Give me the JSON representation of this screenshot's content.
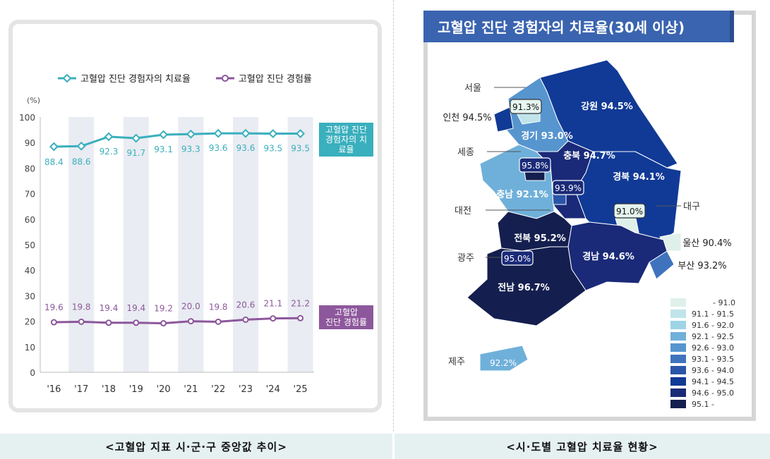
{
  "chart_data": {
    "type": "line",
    "categories": [
      "'16",
      "'17",
      "'18",
      "'19",
      "'20",
      "'21",
      "'22",
      "'23",
      "'24",
      "'25"
    ],
    "ylabel": "(%)",
    "ylim": [
      0,
      100
    ],
    "yticks": [
      0,
      10,
      20,
      30,
      40,
      50,
      60,
      70,
      80,
      90,
      100
    ],
    "legend_position": "top",
    "series": [
      {
        "name": "고혈압 진단 경험자의 치료율",
        "tag": "고혈압 진단 경험자의 치료율",
        "tag_lines": [
          "고혈압 진단",
          "경험자의 치료율"
        ],
        "color": "#3aafbd",
        "values": [
          88.4,
          88.6,
          92.3,
          91.7,
          93.1,
          93.3,
          93.6,
          93.6,
          93.5,
          93.5
        ],
        "labels": [
          "88.4",
          "88.6",
          "92.3",
          "91.7",
          "93.1",
          "93.3",
          "93.6",
          "93.6",
          "93.5",
          "93.5"
        ]
      },
      {
        "name": "고혈압 진단 경험률",
        "tag_lines": [
          "고혈압",
          "진단 경험률"
        ],
        "color": "#8d579c",
        "values": [
          19.6,
          19.8,
          19.4,
          19.4,
          19.2,
          20.0,
          19.8,
          20.6,
          21.1,
          21.2
        ],
        "labels": [
          "19.6",
          "19.8",
          "19.4",
          "19.4",
          "19.2",
          "20.0",
          "19.8",
          "20.6",
          "21.1",
          "21.2"
        ]
      }
    ]
  },
  "left_caption": "<고혈압 지표 시·군·구 중앙값 추이>",
  "right_caption": "<시·도별 고혈압 치료율 현황>",
  "map": {
    "title": "고혈압 진단 경험자의 치료율(30세 이상)",
    "legend": [
      {
        "label": "- 91.0",
        "color": "#dff0ea"
      },
      {
        "label": "91.1 - 91.5",
        "color": "#c0e4ea"
      },
      {
        "label": "91.6 - 92.0",
        "color": "#9dd5e6"
      },
      {
        "label": "92.1 - 92.5",
        "color": "#6fb0da"
      },
      {
        "label": "92.6 - 93.0",
        "color": "#5795cf"
      },
      {
        "label": "93.1 - 93.5",
        "color": "#3f73be"
      },
      {
        "label": "93.6 - 94.0",
        "color": "#2a55a8"
      },
      {
        "label": "94.1 - 94.5",
        "color": "#113a96"
      },
      {
        "label": "94.6 - 95.0",
        "color": "#1a2a78"
      },
      {
        "label": "95.1 -",
        "color": "#141f4f"
      }
    ],
    "regions": [
      {
        "name": "강원",
        "value": "94.5%"
      },
      {
        "name": "경기",
        "value": "93.0%"
      },
      {
        "name": "서울",
        "value": "91.3%"
      },
      {
        "name": "인천",
        "value": "94.5%"
      },
      {
        "name": "충남",
        "value": "92.1%"
      },
      {
        "name": "세종",
        "value": "95.8%"
      },
      {
        "name": "충북",
        "value": "94.7%"
      },
      {
        "name": "대전",
        "value": "93.9%"
      },
      {
        "name": "경북",
        "value": "94.1%"
      },
      {
        "name": "대구",
        "value": "91.0%"
      },
      {
        "name": "울산",
        "value": "90.4%"
      },
      {
        "name": "부산",
        "value": "93.2%"
      },
      {
        "name": "경남",
        "value": "94.6%"
      },
      {
        "name": "전북",
        "value": "95.2%"
      },
      {
        "name": "광주",
        "value": "95.0%"
      },
      {
        "name": "전남",
        "value": "96.7%"
      },
      {
        "name": "제주",
        "value": "92.2%"
      }
    ]
  }
}
